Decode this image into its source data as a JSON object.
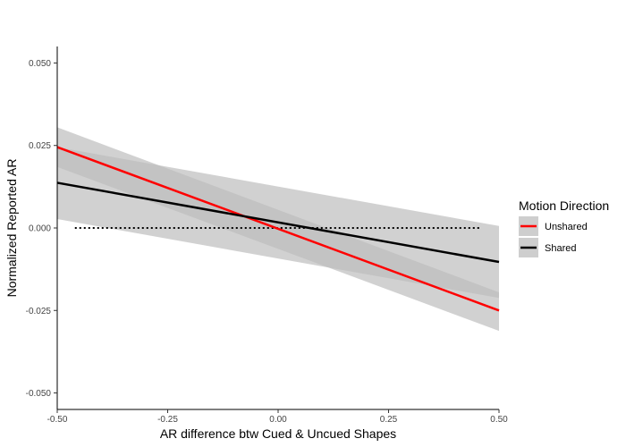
{
  "chart_data": {
    "type": "line",
    "title": "",
    "xlabel": "AR difference btw Cued & Uncued Shapes",
    "ylabel": "Normalized Reported AR",
    "xlim": [
      -0.5,
      0.5
    ],
    "ylim": [
      -0.055,
      0.055
    ],
    "x_ticks": [
      -0.5,
      -0.25,
      0.0,
      0.25,
      0.5
    ],
    "x_tick_labels": [
      "-0.50",
      "-0.25",
      "0.00",
      "0.25",
      "0.50"
    ],
    "y_ticks": [
      -0.05,
      -0.025,
      0.0,
      0.025,
      0.05
    ],
    "y_tick_labels": [
      "-0.050",
      "-0.025",
      "0.000",
      "0.025",
      "0.050"
    ],
    "grid": false,
    "legend": {
      "title": "Motion Direction",
      "placement": "right",
      "entries": [
        "Unshared",
        "Shared"
      ]
    },
    "series": [
      {
        "name": "Unshared",
        "color": "#ff0000",
        "x": [
          -0.5,
          0.5
        ],
        "y": [
          0.0245,
          -0.025
        ],
        "ribbon_upper": [
          0.0305,
          -0.0195
        ],
        "ribbon_lower": [
          0.0185,
          -0.0312
        ],
        "ribbon_x": [
          -0.5,
          0.5
        ]
      },
      {
        "name": "Shared",
        "color": "#000000",
        "x": [
          -0.5,
          0.5
        ],
        "y": [
          0.0137,
          -0.0103
        ],
        "ribbon_upper": [
          0.0245,
          0.0006
        ],
        "ribbon_lower": [
          0.0027,
          -0.0212
        ],
        "ribbon_x": [
          -0.5,
          0.5
        ]
      }
    ],
    "reference_line": {
      "style": "dotted",
      "color": "#000000",
      "x": [
        -0.46,
        0.46
      ],
      "y": [
        0.0,
        0.0
      ]
    },
    "ribbon_color": "#bdbdbd"
  }
}
